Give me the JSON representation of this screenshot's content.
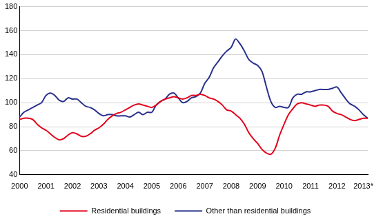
{
  "chart_data": {
    "type": "line",
    "categories": [
      "2000",
      null,
      null,
      null,
      null,
      null,
      "2001",
      null,
      null,
      null,
      null,
      null,
      "2002",
      null,
      null,
      null,
      null,
      null,
      "2003",
      null,
      null,
      null,
      null,
      null,
      "2004",
      null,
      null,
      null,
      null,
      null,
      "2005",
      null,
      null,
      null,
      null,
      null,
      "2006",
      null,
      null,
      null,
      null,
      null,
      "2007",
      null,
      null,
      null,
      null,
      null,
      "2008",
      null,
      null,
      null,
      null,
      null,
      "2009",
      null,
      null,
      null,
      null,
      null,
      "2010",
      null,
      null,
      null,
      null,
      null,
      "2011",
      null,
      null,
      null,
      null,
      null,
      "2012",
      null,
      null,
      null,
      null,
      null,
      "2013*",
      null
    ],
    "series": [
      {
        "name": "Residential buildings",
        "color": "#e2001a",
        "values": [
          86,
          87,
          87,
          86,
          82,
          79,
          77,
          74,
          71,
          69,
          70,
          73,
          75,
          74,
          72,
          72,
          74,
          77,
          79,
          82,
          86,
          89,
          91,
          92,
          94,
          96,
          98,
          99,
          98,
          97,
          96,
          98,
          101,
          103,
          104,
          105,
          104,
          103,
          104,
          106,
          106,
          107,
          106,
          104,
          103,
          101,
          98,
          94,
          93,
          90,
          87,
          82,
          75,
          70,
          66,
          61,
          58,
          57,
          62,
          73,
          82,
          90,
          95,
          99,
          100,
          99,
          98,
          97,
          98,
          98,
          97,
          93,
          91,
          90,
          88,
          86,
          85,
          86,
          87,
          87
        ]
      },
      {
        "name": "Other than residential buildings",
        "color": "#28308c",
        "values": [
          88,
          92,
          94,
          96,
          98,
          100,
          106,
          108,
          106,
          102,
          101,
          104,
          103,
          103,
          100,
          97,
          96,
          94,
          91,
          89,
          90,
          90,
          89,
          89,
          89,
          88,
          90,
          92,
          90,
          92,
          92,
          98,
          101,
          103,
          107,
          108,
          104,
          100,
          101,
          104,
          105,
          108,
          116,
          121,
          129,
          134,
          139,
          143,
          146,
          153,
          149,
          143,
          136,
          133,
          131,
          126,
          113,
          101,
          96,
          97,
          96,
          96,
          104,
          107,
          107,
          109,
          109,
          110,
          111,
          111,
          111,
          112,
          113,
          108,
          103,
          99,
          97,
          94,
          90,
          87
        ]
      }
    ],
    "ylim": [
      40,
      180
    ],
    "yticks": [
      40,
      60,
      80,
      100,
      120,
      140,
      160,
      180
    ],
    "grid": true,
    "legend": "bottom"
  }
}
